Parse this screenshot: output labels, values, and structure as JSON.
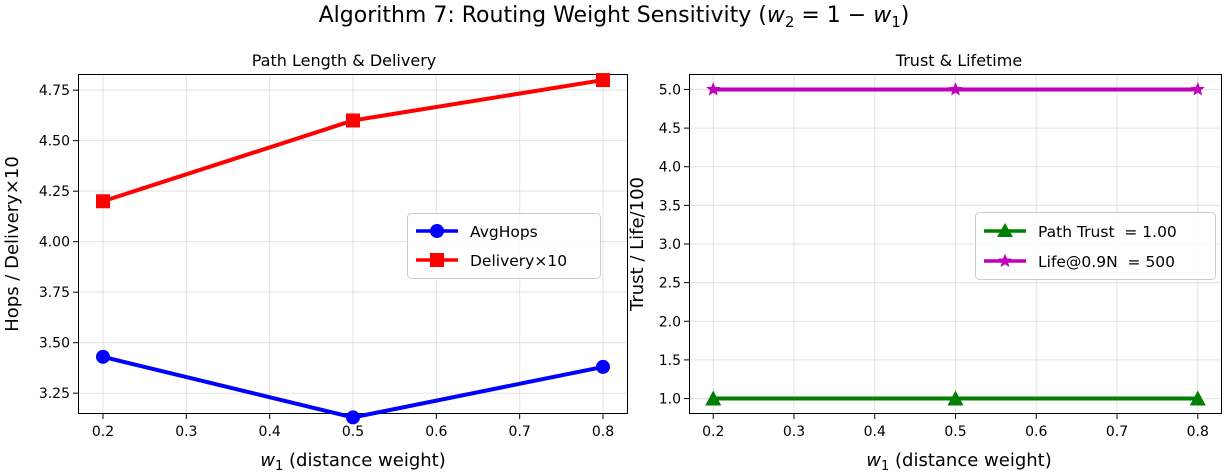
{
  "figure": {
    "title_prefix": "Algorithm 7: Routing Weight Sensitivity (",
    "title_w2": "w",
    "title_w2_sub": "2",
    "title_eq": " = 1 − ",
    "title_w1": "w",
    "title_w1_sub": "1",
    "title_suffix": ")"
  },
  "chart_data": [
    {
      "type": "line",
      "title": "Path Length & Delivery",
      "xlabel_var": "w",
      "xlabel_sub": "1",
      "xlabel_text": " (distance weight)",
      "ylabel": "Hops / Delivery×10",
      "x": [
        0.2,
        0.5,
        0.8
      ],
      "xlim": [
        0.17,
        0.83
      ],
      "ylim": [
        3.147,
        4.83
      ],
      "xticks": [
        0.2,
        0.3,
        0.4,
        0.5,
        0.6,
        0.7,
        0.8
      ],
      "xtick_labels": [
        "0.2",
        "0.3",
        "0.4",
        "0.5",
        "0.6",
        "0.7",
        "0.8"
      ],
      "yticks": [
        3.25,
        3.5,
        3.75,
        4.0,
        4.25,
        4.5,
        4.75
      ],
      "ytick_labels": [
        "3.25",
        "3.50",
        "3.75",
        "4.00",
        "4.25",
        "4.50",
        "4.75"
      ],
      "grid": true,
      "legend_position": "center-right",
      "series": [
        {
          "name": "AvgHops",
          "values": [
            3.43,
            3.13,
            3.38
          ],
          "color": "#0000ff",
          "marker": "circle"
        },
        {
          "name": "Delivery×10",
          "values": [
            4.2,
            4.6,
            4.8
          ],
          "color": "#ff0000",
          "marker": "square"
        }
      ]
    },
    {
      "type": "line",
      "title": "Trust & Lifetime",
      "xlabel_var": "w",
      "xlabel_sub": "1",
      "xlabel_text": " (distance weight)",
      "ylabel": "Trust / Life/100",
      "x": [
        0.2,
        0.5,
        0.8
      ],
      "xlim": [
        0.17,
        0.83
      ],
      "ylim": [
        0.8,
        5.2
      ],
      "xticks": [
        0.2,
        0.3,
        0.4,
        0.5,
        0.6,
        0.7,
        0.8
      ],
      "xtick_labels": [
        "0.2",
        "0.3",
        "0.4",
        "0.5",
        "0.6",
        "0.7",
        "0.8"
      ],
      "yticks": [
        1.0,
        1.5,
        2.0,
        2.5,
        3.0,
        3.5,
        4.0,
        4.5,
        5.0
      ],
      "ytick_labels": [
        "1.0",
        "1.5",
        "2.0",
        "2.5",
        "3.0",
        "3.5",
        "4.0",
        "4.5",
        "5.0"
      ],
      "grid": true,
      "legend_position": "center-right",
      "series": [
        {
          "name": "Path Trust  = 1.00",
          "values": [
            1.0,
            1.0,
            1.0
          ],
          "color": "#008000",
          "marker": "triangle"
        },
        {
          "name": "Life@0.9N  = 500",
          "values": [
            5.0,
            5.0,
            5.0
          ],
          "color": "#bf00bf",
          "marker": "star"
        }
      ]
    }
  ]
}
